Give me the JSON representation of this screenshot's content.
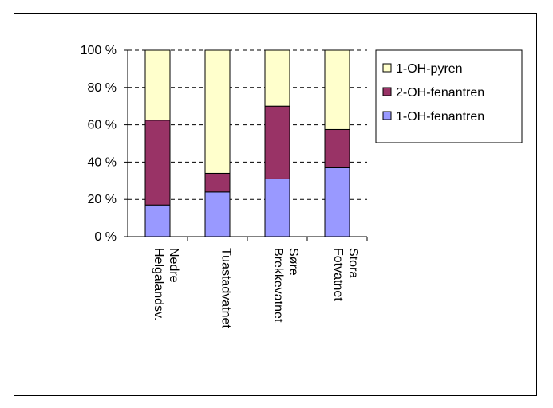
{
  "chart_data": {
    "type": "bar",
    "stacked": true,
    "percent": true,
    "categories": [
      [
        "Nedre",
        "Helgalandsv."
      ],
      [
        "Tuastadvatnet"
      ],
      [
        "Søre",
        "Brekkevatnet"
      ],
      [
        "Stora",
        "Fotvatnet"
      ]
    ],
    "series": [
      {
        "name": "1-OH-fenantren",
        "color": "#9999ff",
        "values": [
          17,
          24,
          31,
          37
        ]
      },
      {
        "name": "2-OH-fenantren",
        "color": "#993366",
        "values": [
          45.5,
          10,
          39,
          20.5
        ]
      },
      {
        "name": "1-OH-pyren",
        "color": "#ffffcc",
        "values": [
          37.5,
          66,
          30,
          42.5
        ]
      }
    ],
    "legend_order": [
      2,
      1,
      0
    ],
    "legend_position": "right",
    "yticks": [
      "0 %",
      "20 %",
      "40 %",
      "60 %",
      "80 %",
      "100 %"
    ],
    "ylim": [
      0,
      100
    ],
    "grid": "dashed horizontal"
  }
}
